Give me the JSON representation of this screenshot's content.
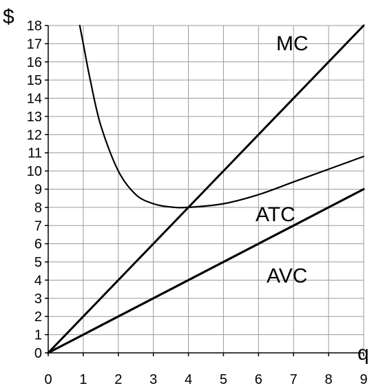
{
  "chart_data": {
    "type": "line",
    "title": "",
    "xlabel": "q",
    "ylabel": "$",
    "xlim": [
      0,
      9
    ],
    "ylim": [
      0,
      18
    ],
    "x_ticks": [
      "0",
      "1",
      "2",
      "3",
      "4",
      "5",
      "6",
      "7",
      "8",
      "9"
    ],
    "y_ticks": [
      "0",
      "1",
      "2",
      "3",
      "4",
      "5",
      "6",
      "7",
      "8",
      "9",
      "10",
      "11",
      "12",
      "13",
      "14",
      "15",
      "16",
      "17",
      "18"
    ],
    "grid": true,
    "series": [
      {
        "name": "MC",
        "x": [
          0,
          1,
          2,
          3,
          4,
          5,
          6,
          7,
          8,
          9
        ],
        "values": [
          0,
          2,
          4,
          6,
          8,
          10,
          12,
          14,
          16,
          18
        ]
      },
      {
        "name": "ATC",
        "x": [
          0.9,
          1,
          1.2,
          1.5,
          2,
          2.5,
          3,
          3.5,
          4,
          5,
          6,
          7,
          8,
          9
        ],
        "values": [
          18,
          17,
          15,
          12.5,
          10,
          8.7,
          8.2,
          8.02,
          8,
          8.2,
          8.7,
          9.4,
          10.1,
          10.8
        ]
      },
      {
        "name": "AVC",
        "x": [
          0,
          1,
          2,
          3,
          4,
          5,
          6,
          7,
          8,
          9
        ],
        "values": [
          0,
          1,
          2,
          3,
          4,
          5,
          6,
          7,
          8,
          9
        ]
      }
    ],
    "annotations": [
      "MC",
      "ATC",
      "AVC"
    ]
  }
}
